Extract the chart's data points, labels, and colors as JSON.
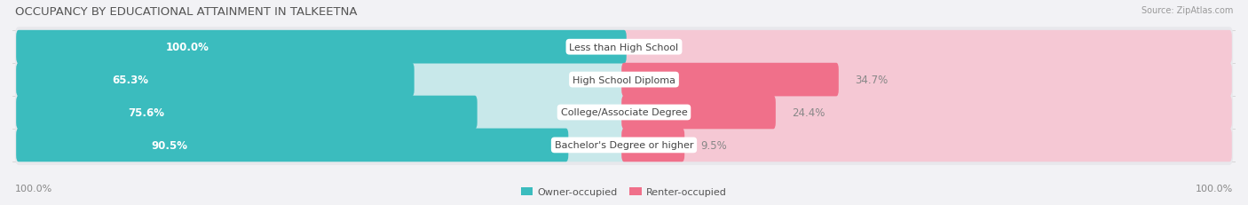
{
  "title": "OCCUPANCY BY EDUCATIONAL ATTAINMENT IN TALKEETNA",
  "source": "Source: ZipAtlas.com",
  "categories": [
    "Less than High School",
    "High School Diploma",
    "College/Associate Degree",
    "Bachelor's Degree or higher"
  ],
  "owner_pct": [
    100.0,
    65.3,
    75.6,
    90.5
  ],
  "renter_pct": [
    0.0,
    34.7,
    24.4,
    9.5
  ],
  "owner_color": "#3BBCBE",
  "renter_color": "#F0708A",
  "owner_color_light": "#C8E8EA",
  "renter_color_light": "#F5C8D4",
  "bg_row_color": "#E8E8EC",
  "owner_label": "Owner-occupied",
  "renter_label": "Renter-occupied",
  "left_label": "100.0%",
  "right_label": "100.0%",
  "title_fontsize": 9.5,
  "label_fontsize": 8.0,
  "pct_fontsize": 8.5,
  "tick_fontsize": 8,
  "background_color": "#F2F2F5"
}
